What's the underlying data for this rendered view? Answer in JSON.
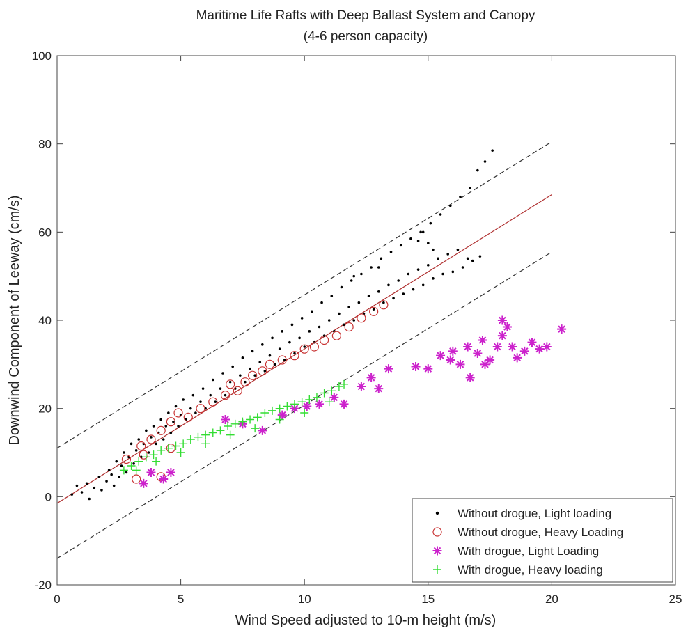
{
  "chart_data": {
    "type": "scatter",
    "title": "Maritime Life Rafts with Deep Ballast System and Canopy",
    "subtitle": "(4-6 person capacity)",
    "xlabel": "Wind Speed adjusted to 10-m height (m/s)",
    "ylabel": "Downwind Component of Leeway (cm/s)",
    "xlim": [
      0,
      25
    ],
    "ylim": [
      -20,
      100
    ],
    "xticks": [
      0,
      5,
      10,
      15,
      20,
      25
    ],
    "yticks": [
      -20,
      0,
      20,
      40,
      60,
      80,
      100
    ],
    "grid": false,
    "legend_position": "bottom-right",
    "series": [
      {
        "name": "Without drogue, Light loading",
        "marker": "dot",
        "color": "#000000",
        "points": [
          [
            0.6,
            0.5
          ],
          [
            0.8,
            2.5
          ],
          [
            1.0,
            1.0
          ],
          [
            1.2,
            3.0
          ],
          [
            1.3,
            -0.5
          ],
          [
            1.5,
            2.0
          ],
          [
            1.7,
            4.5
          ],
          [
            1.8,
            1.5
          ],
          [
            2.0,
            3.5
          ],
          [
            2.1,
            6.0
          ],
          [
            2.2,
            5.0
          ],
          [
            2.3,
            2.5
          ],
          [
            2.4,
            8.0
          ],
          [
            2.5,
            4.5
          ],
          [
            2.6,
            7.0
          ],
          [
            2.7,
            10.0
          ],
          [
            2.8,
            5.5
          ],
          [
            2.9,
            9.0
          ],
          [
            3.0,
            12.0
          ],
          [
            3.1,
            7.5
          ],
          [
            3.2,
            10.5
          ],
          [
            3.3,
            13.0
          ],
          [
            3.4,
            9.0
          ],
          [
            3.5,
            12.0
          ],
          [
            3.6,
            15.0
          ],
          [
            3.7,
            10.0
          ],
          [
            3.8,
            13.5
          ],
          [
            3.9,
            16.0
          ],
          [
            4.0,
            12.0
          ],
          [
            4.1,
            14.5
          ],
          [
            4.2,
            17.5
          ],
          [
            4.3,
            13.0
          ],
          [
            4.4,
            16.0
          ],
          [
            4.5,
            19.0
          ],
          [
            4.6,
            14.5
          ],
          [
            4.7,
            17.0
          ],
          [
            4.8,
            20.5
          ],
          [
            4.9,
            16.0
          ],
          [
            5.0,
            18.5
          ],
          [
            5.1,
            22.0
          ],
          [
            5.2,
            17.5
          ],
          [
            5.4,
            20.0
          ],
          [
            5.5,
            23.0
          ],
          [
            5.6,
            19.0
          ],
          [
            5.8,
            21.5
          ],
          [
            5.9,
            24.5
          ],
          [
            6.0,
            20.0
          ],
          [
            6.2,
            23.0
          ],
          [
            6.3,
            26.5
          ],
          [
            6.4,
            21.5
          ],
          [
            6.6,
            24.5
          ],
          [
            6.7,
            28.0
          ],
          [
            6.8,
            23.0
          ],
          [
            7.0,
            26.0
          ],
          [
            7.1,
            29.5
          ],
          [
            7.2,
            24.5
          ],
          [
            7.4,
            27.5
          ],
          [
            7.5,
            31.5
          ],
          [
            7.6,
            26.0
          ],
          [
            7.8,
            29.0
          ],
          [
            7.9,
            33.0
          ],
          [
            8.0,
            27.5
          ],
          [
            8.2,
            30.5
          ],
          [
            8.3,
            34.5
          ],
          [
            8.4,
            28.5
          ],
          [
            8.6,
            32.0
          ],
          [
            8.7,
            36.0
          ],
          [
            8.8,
            30.0
          ],
          [
            9.0,
            33.5
          ],
          [
            9.1,
            37.5
          ],
          [
            9.2,
            31.0
          ],
          [
            9.4,
            35.0
          ],
          [
            9.5,
            39.0
          ],
          [
            9.6,
            32.5
          ],
          [
            9.8,
            36.0
          ],
          [
            9.9,
            40.5
          ],
          [
            10.0,
            34.0
          ],
          [
            10.2,
            37.5
          ],
          [
            10.3,
            42.0
          ],
          [
            10.4,
            35.0
          ],
          [
            10.6,
            38.5
          ],
          [
            10.7,
            44.0
          ],
          [
            10.8,
            36.5
          ],
          [
            11.0,
            40.0
          ],
          [
            11.1,
            45.5
          ],
          [
            11.2,
            37.5
          ],
          [
            11.4,
            41.5
          ],
          [
            11.5,
            47.5
          ],
          [
            11.6,
            39.0
          ],
          [
            11.8,
            43.0
          ],
          [
            11.9,
            49.0
          ],
          [
            12.0,
            40.0
          ],
          [
            12.2,
            44.0
          ],
          [
            12.3,
            50.5
          ],
          [
            12.4,
            41.5
          ],
          [
            12.6,
            45.5
          ],
          [
            12.7,
            52.0
          ],
          [
            12.8,
            42.5
          ],
          [
            13.0,
            46.5
          ],
          [
            13.1,
            54.0
          ],
          [
            13.2,
            44.0
          ],
          [
            13.4,
            48.0
          ],
          [
            13.5,
            55.5
          ],
          [
            13.6,
            45.0
          ],
          [
            13.8,
            49.0
          ],
          [
            13.9,
            57.0
          ],
          [
            14.0,
            46.0
          ],
          [
            14.2,
            50.5
          ],
          [
            14.3,
            58.5
          ],
          [
            14.4,
            47.0
          ],
          [
            14.6,
            51.5
          ],
          [
            14.7,
            60.0
          ],
          [
            14.8,
            48.0
          ],
          [
            15.0,
            52.5
          ],
          [
            15.1,
            62.0
          ],
          [
            15.2,
            49.5
          ],
          [
            15.4,
            54.0
          ],
          [
            15.5,
            64.0
          ],
          [
            15.6,
            50.5
          ],
          [
            15.8,
            55.0
          ],
          [
            15.9,
            66.0
          ],
          [
            16.0,
            51.0
          ],
          [
            16.2,
            56.0
          ],
          [
            16.3,
            68.0
          ],
          [
            16.4,
            52.0
          ],
          [
            16.6,
            54.0
          ],
          [
            16.7,
            70.0
          ],
          [
            16.8,
            53.5
          ],
          [
            17.0,
            74.0
          ],
          [
            17.1,
            54.5
          ],
          [
            17.3,
            76.0
          ],
          [
            17.6,
            78.5
          ],
          [
            14.8,
            60.0
          ],
          [
            15.2,
            56.0
          ],
          [
            14.6,
            58.0
          ],
          [
            15.0,
            57.5
          ],
          [
            12.0,
            50.0
          ],
          [
            13.0,
            52.0
          ]
        ]
      },
      {
        "name": "Without drogue, Heavy Loading",
        "marker": "circle",
        "color": "#c83232",
        "points": [
          [
            3.2,
            4.0
          ],
          [
            4.2,
            4.5
          ],
          [
            2.8,
            8.5
          ],
          [
            3.4,
            11.5
          ],
          [
            3.8,
            13.0
          ],
          [
            4.2,
            15.0
          ],
          [
            4.6,
            17.0
          ],
          [
            4.9,
            19.0
          ],
          [
            5.3,
            18.0
          ],
          [
            5.8,
            20.0
          ],
          [
            6.3,
            21.5
          ],
          [
            6.8,
            23.0
          ],
          [
            7.0,
            25.5
          ],
          [
            7.3,
            24.0
          ],
          [
            7.6,
            26.0
          ],
          [
            7.9,
            27.5
          ],
          [
            8.3,
            28.5
          ],
          [
            8.6,
            30.0
          ],
          [
            9.1,
            31.0
          ],
          [
            9.6,
            32.0
          ],
          [
            10.0,
            33.5
          ],
          [
            10.4,
            34.0
          ],
          [
            10.8,
            35.5
          ],
          [
            11.3,
            36.5
          ],
          [
            11.8,
            38.5
          ],
          [
            12.3,
            40.5
          ],
          [
            12.8,
            42.0
          ],
          [
            13.2,
            43.5
          ],
          [
            3.5,
            9.5
          ],
          [
            4.6,
            11.0
          ]
        ]
      },
      {
        "name": "With drogue, Light Loading",
        "marker": "asterisk",
        "color": "#cc22cc",
        "points": [
          [
            3.5,
            3.0
          ],
          [
            3.8,
            5.5
          ],
          [
            4.3,
            4.0
          ],
          [
            4.6,
            5.5
          ],
          [
            6.8,
            17.5
          ],
          [
            7.5,
            16.5
          ],
          [
            8.3,
            15.0
          ],
          [
            9.1,
            18.5
          ],
          [
            9.6,
            20.0
          ],
          [
            10.1,
            20.5
          ],
          [
            10.6,
            21.0
          ],
          [
            11.2,
            22.5
          ],
          [
            11.6,
            21.0
          ],
          [
            12.3,
            25.0
          ],
          [
            12.7,
            27.0
          ],
          [
            13.0,
            24.5
          ],
          [
            13.4,
            29.0
          ],
          [
            14.5,
            29.5
          ],
          [
            15.0,
            29.0
          ],
          [
            15.5,
            32.0
          ],
          [
            16.0,
            33.0
          ],
          [
            16.3,
            30.0
          ],
          [
            16.6,
            34.0
          ],
          [
            16.7,
            27.0
          ],
          [
            17.0,
            32.5
          ],
          [
            17.2,
            35.5
          ],
          [
            17.5,
            31.0
          ],
          [
            17.8,
            34.0
          ],
          [
            18.0,
            36.5
          ],
          [
            18.2,
            38.5
          ],
          [
            18.4,
            34.0
          ],
          [
            18.6,
            31.5
          ],
          [
            18.9,
            33.0
          ],
          [
            19.2,
            35.0
          ],
          [
            19.5,
            33.5
          ],
          [
            19.8,
            34.0
          ],
          [
            20.4,
            38.0
          ],
          [
            18.0,
            40.0
          ],
          [
            17.3,
            30.0
          ],
          [
            15.9,
            31.0
          ]
        ]
      },
      {
        "name": "With drogue, Heavy loading",
        "marker": "plus",
        "color": "#33dd33",
        "points": [
          [
            2.7,
            6.0
          ],
          [
            3.0,
            7.0
          ],
          [
            3.3,
            8.0
          ],
          [
            3.6,
            9.0
          ],
          [
            3.9,
            9.5
          ],
          [
            4.2,
            10.5
          ],
          [
            4.5,
            11.0
          ],
          [
            4.8,
            11.5
          ],
          [
            5.1,
            12.0
          ],
          [
            5.4,
            13.0
          ],
          [
            5.7,
            13.5
          ],
          [
            6.0,
            14.0
          ],
          [
            6.3,
            14.5
          ],
          [
            6.6,
            15.0
          ],
          [
            6.9,
            16.0
          ],
          [
            7.2,
            16.5
          ],
          [
            7.5,
            17.0
          ],
          [
            7.8,
            17.5
          ],
          [
            8.1,
            18.0
          ],
          [
            8.4,
            19.0
          ],
          [
            8.7,
            19.5
          ],
          [
            9.0,
            20.0
          ],
          [
            9.3,
            20.5
          ],
          [
            9.6,
            21.0
          ],
          [
            9.9,
            21.5
          ],
          [
            10.2,
            22.0
          ],
          [
            10.5,
            22.5
          ],
          [
            10.8,
            23.5
          ],
          [
            11.1,
            24.0
          ],
          [
            11.4,
            25.0
          ],
          [
            11.6,
            25.5
          ],
          [
            3.2,
            6.0
          ],
          [
            4.0,
            8.0
          ],
          [
            5.0,
            10.0
          ],
          [
            6.0,
            12.0
          ],
          [
            7.0,
            14.0
          ],
          [
            8.0,
            15.5
          ],
          [
            9.0,
            17.5
          ],
          [
            10.0,
            19.0
          ],
          [
            11.0,
            21.5
          ]
        ]
      }
    ],
    "lines": [
      {
        "style": "solid",
        "color": "#b03030",
        "x": [
          0,
          20
        ],
        "y": [
          -1.5,
          68.5
        ]
      },
      {
        "style": "dashed",
        "color": "#333333",
        "x": [
          0,
          20
        ],
        "y": [
          11.0,
          80.5
        ]
      },
      {
        "style": "dashed",
        "color": "#333333",
        "x": [
          0,
          20
        ],
        "y": [
          -14.0,
          55.5
        ]
      }
    ]
  }
}
